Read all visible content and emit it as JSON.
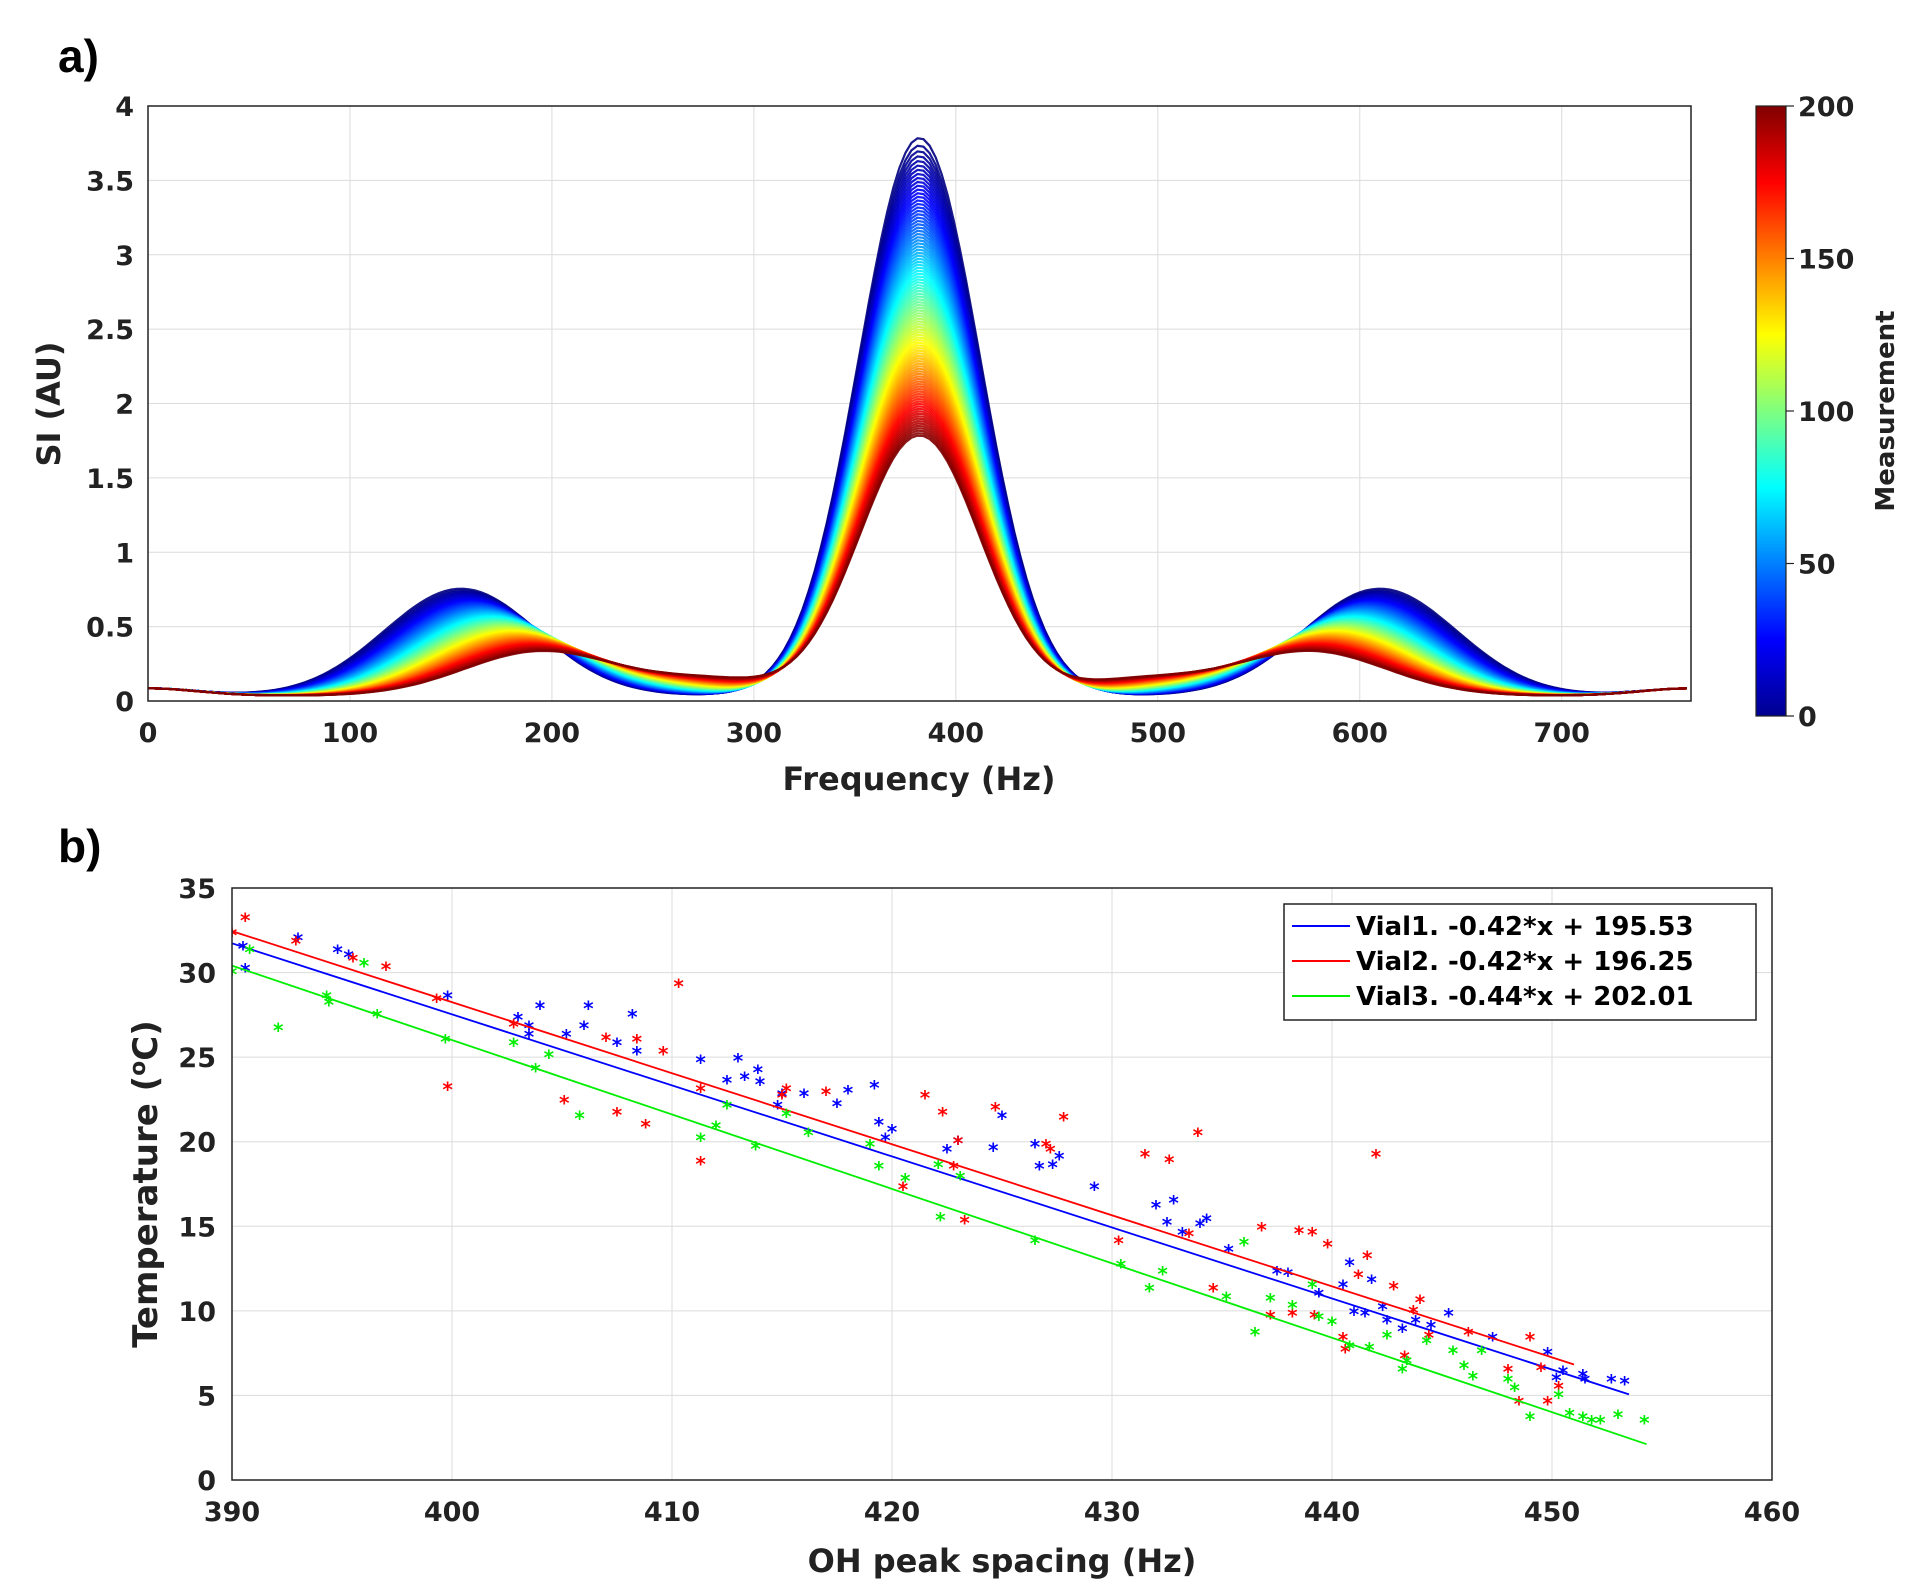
{
  "panel_labels": {
    "a": "a)",
    "b": "b)"
  },
  "chart_data": [
    {
      "type": "line",
      "title": "",
      "xlabel": "Frequency (Hz)",
      "ylabel": "SI (AU)",
      "xlim": [
        0,
        764
      ],
      "ylim": [
        0,
        4
      ],
      "xticks": [
        "0",
        "100",
        "200",
        "300",
        "400",
        "500",
        "600",
        "700"
      ],
      "yticks": [
        "0",
        "0.5",
        "1",
        "1.5",
        "2",
        "2.5",
        "3",
        "3.5",
        "4"
      ],
      "grid": true,
      "colorbar": {
        "label": "Measurement",
        "range": [
          0,
          200
        ],
        "ticks": [
          "0",
          "50",
          "100",
          "150",
          "200"
        ],
        "colormap": "jet"
      },
      "series_description": {
        "count": 200,
        "center_peak_hz": 382,
        "center_peak_height_first": 3.75,
        "center_peak_height_last": 1.75,
        "side_peak_left_hz_first": 155,
        "side_peak_left_hz_last": 195,
        "side_peak_right_hz_first": 610,
        "side_peak_right_hz_last": 575,
        "side_peak_height_first": 0.72,
        "side_peak_height_last": 0.3
      }
    },
    {
      "type": "scatter",
      "title": "",
      "xlabel": "OH peak spacing (Hz)",
      "ylabel": "Temperature (",
      "ylabel_sup": "o",
      "ylabel_end": "C)",
      "xlim": [
        390,
        460
      ],
      "ylim": [
        0,
        35
      ],
      "xticks": [
        "390",
        "400",
        "410",
        "420",
        "430",
        "440",
        "450",
        "460"
      ],
      "yticks": [
        "0",
        "5",
        "10",
        "15",
        "20",
        "25",
        "30",
        "35"
      ],
      "grid": true,
      "legend_position": "top-right",
      "series": [
        {
          "name": "Vial1. -0.42*x + 195.53",
          "color": "#0000ff",
          "slope": -0.42,
          "intercept": 195.53,
          "fit_x": [
            390,
            453.5
          ],
          "points": [
            [
              390.5,
              31.5
            ],
            [
              390.6,
              30.2
            ],
            [
              393,
              32
            ],
            [
              394.8,
              31.3
            ],
            [
              395.3,
              31
            ],
            [
              399.8,
              28.6
            ],
            [
              403,
              27.3
            ],
            [
              403.5,
              26.8
            ],
            [
              403.5,
              26.3
            ],
            [
              404,
              28
            ],
            [
              405.2,
              26.3
            ],
            [
              406,
              26.8
            ],
            [
              406.2,
              28
            ],
            [
              407.5,
              25.8
            ],
            [
              408.2,
              27.5
            ],
            [
              408.4,
              25.3
            ],
            [
              411.3,
              24.8
            ],
            [
              412.5,
              23.6
            ],
            [
              413,
              24.9
            ],
            [
              413.3,
              23.8
            ],
            [
              413.9,
              24.2
            ],
            [
              414,
              23.5
            ],
            [
              414.8,
              22.1
            ],
            [
              415,
              22.8
            ],
            [
              416,
              22.8
            ],
            [
              417.5,
              22.2
            ],
            [
              418,
              23
            ],
            [
              419.2,
              23.3
            ],
            [
              419.4,
              21.1
            ],
            [
              419.7,
              20.2
            ],
            [
              420,
              20.7
            ],
            [
              422.5,
              19.5
            ],
            [
              423,
              20
            ],
            [
              424.6,
              19.6
            ],
            [
              425,
              21.5
            ],
            [
              426.5,
              19.8
            ],
            [
              426.7,
              18.5
            ],
            [
              427.3,
              18.6
            ],
            [
              427.6,
              19.1
            ],
            [
              429.2,
              17.3
            ],
            [
              432,
              16.2
            ],
            [
              432.5,
              15.2
            ],
            [
              432.8,
              16.5
            ],
            [
              433.2,
              14.6
            ],
            [
              434,
              15.1
            ],
            [
              434.3,
              15.4
            ],
            [
              435.3,
              13.6
            ],
            [
              437.5,
              12.3
            ],
            [
              438,
              12.2
            ],
            [
              439.4,
              11
            ],
            [
              440.5,
              11.5
            ],
            [
              440.8,
              12.8
            ],
            [
              441,
              9.9
            ],
            [
              441.5,
              9.8
            ],
            [
              441.8,
              11.8
            ],
            [
              442.3,
              10.2
            ],
            [
              442.5,
              9.4
            ],
            [
              443.2,
              8.9
            ],
            [
              443.8,
              9.4
            ],
            [
              444.5,
              9.1
            ],
            [
              445.3,
              9.8
            ],
            [
              447.3,
              8.4
            ],
            [
              449.8,
              7.5
            ],
            [
              450.2,
              6
            ],
            [
              450.5,
              6.4
            ],
            [
              451.4,
              6.2
            ],
            [
              451.5,
              5.9
            ],
            [
              452.7,
              5.9
            ],
            [
              453.3,
              5.8
            ]
          ]
        },
        {
          "name": "Vial2. -0.42*x + 196.25",
          "color": "#ff0000",
          "slope": -0.42,
          "intercept": 196.25,
          "fit_x": [
            390,
            451
          ],
          "points": [
            [
              390,
              32.3
            ],
            [
              390.6,
              33.2
            ],
            [
              392.9,
              31.8
            ],
            [
              395.5,
              30.8
            ],
            [
              397,
              30.3
            ],
            [
              399.3,
              28.4
            ],
            [
              399.8,
              23.2
            ],
            [
              402.8,
              26.9
            ],
            [
              405.1,
              22.4
            ],
            [
              407,
              26.1
            ],
            [
              407.5,
              21.7
            ],
            [
              408.4,
              26
            ],
            [
              408.8,
              21
            ],
            [
              409.6,
              25.3
            ],
            [
              410.3,
              29.3
            ],
            [
              411.3,
              23.1
            ],
            [
              411.3,
              18.8
            ],
            [
              415,
              22.7
            ],
            [
              415.2,
              23.1
            ],
            [
              417,
              22.9
            ],
            [
              420.5,
              17.3
            ],
            [
              421.5,
              22.7
            ],
            [
              422.3,
              21.7
            ],
            [
              422.8,
              18.5
            ],
            [
              423,
              20
            ],
            [
              423.3,
              15.3
            ],
            [
              424.7,
              22
            ],
            [
              427,
              19.8
            ],
            [
              427.2,
              19.5
            ],
            [
              427.8,
              21.4
            ],
            [
              430.3,
              14.1
            ],
            [
              431.5,
              19.2
            ],
            [
              432.6,
              18.9
            ],
            [
              433.5,
              14.5
            ],
            [
              433.9,
              20.5
            ],
            [
              434.6,
              11.3
            ],
            [
              436.8,
              14.9
            ],
            [
              437.2,
              9.7
            ],
            [
              438.2,
              9.8
            ],
            [
              438.5,
              14.7
            ],
            [
              439.1,
              14.6
            ],
            [
              439.2,
              9.7
            ],
            [
              439.8,
              13.9
            ],
            [
              440.5,
              8.4
            ],
            [
              440.6,
              7.7
            ],
            [
              441.2,
              12.1
            ],
            [
              441.6,
              13.2
            ],
            [
              442,
              19.2
            ],
            [
              442.8,
              11.4
            ],
            [
              443.3,
              7.3
            ],
            [
              443.7,
              10
            ],
            [
              444,
              10.6
            ],
            [
              444.4,
              8.5
            ],
            [
              446.2,
              8.7
            ],
            [
              448,
              6.5
            ],
            [
              448.5,
              4.6
            ],
            [
              449,
              8.4
            ],
            [
              449.5,
              6.6
            ],
            [
              449.8,
              4.6
            ],
            [
              450.3,
              5.5
            ]
          ]
        },
        {
          "name": "Vial3. -0.44*x + 202.01",
          "color": "#00ee00",
          "slope": -0.44,
          "intercept": 202.01,
          "fit_x": [
            390,
            454.3
          ],
          "points": [
            [
              390,
              30
            ],
            [
              390.8,
              31.3
            ],
            [
              392.1,
              26.7
            ],
            [
              394.3,
              28.6
            ],
            [
              394.4,
              28.2
            ],
            [
              396,
              30.5
            ],
            [
              396.6,
              27.5
            ],
            [
              399.7,
              26
            ],
            [
              402.8,
              25.8
            ],
            [
              403.8,
              24.3
            ],
            [
              404.4,
              25.1
            ],
            [
              405.8,
              21.5
            ],
            [
              411.3,
              20.2
            ],
            [
              412,
              20.9
            ],
            [
              412.5,
              22.1
            ],
            [
              413.8,
              19.7
            ],
            [
              415.2,
              21.6
            ],
            [
              416.2,
              20.5
            ],
            [
              419,
              19.8
            ],
            [
              419.4,
              18.5
            ],
            [
              420.6,
              17.8
            ],
            [
              422.1,
              18.6
            ],
            [
              422.2,
              15.5
            ],
            [
              423.1,
              17.9
            ],
            [
              426.5,
              14.1
            ],
            [
              430.4,
              12.7
            ],
            [
              431.7,
              11.3
            ],
            [
              432.3,
              12.3
            ],
            [
              435.2,
              10.8
            ],
            [
              436,
              14
            ],
            [
              436.5,
              8.7
            ],
            [
              437.2,
              10.7
            ],
            [
              438.2,
              10.3
            ],
            [
              439.1,
              11.5
            ],
            [
              439.4,
              9.6
            ],
            [
              440,
              9.3
            ],
            [
              440.8,
              7.9
            ],
            [
              441.7,
              7.8
            ],
            [
              442.5,
              8.5
            ],
            [
              443.2,
              6.5
            ],
            [
              443.4,
              7
            ],
            [
              444.3,
              8.2
            ],
            [
              445.5,
              7.6
            ],
            [
              446,
              6.7
            ],
            [
              446.4,
              6.1
            ],
            [
              446.8,
              7.6
            ],
            [
              448,
              5.9
            ],
            [
              448.3,
              5.4
            ],
            [
              449,
              3.7
            ],
            [
              450.3,
              5
            ],
            [
              450.8,
              3.9
            ],
            [
              451.4,
              3.7
            ],
            [
              451.8,
              3.5
            ],
            [
              452.2,
              3.5
            ],
            [
              453,
              3.8
            ],
            [
              454.2,
              3.5
            ]
          ]
        }
      ]
    }
  ]
}
